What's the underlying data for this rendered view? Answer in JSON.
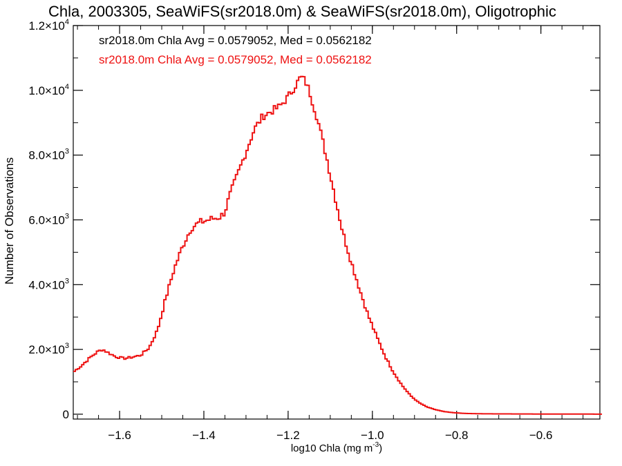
{
  "colors": {
    "series_red": "#ee1111",
    "axis": "#000000"
  },
  "chart_data": {
    "type": "line",
    "style": "step-histogram",
    "title": "Chla, 2003305, SeaWiFS(sr2018.0m) & SeaWiFS(sr2018.0m), Oligotrophic",
    "xlabel": "log10 Chla (mg m",
    "xlabel_sup": "-3",
    "xlabel_end": ")",
    "ylabel": "Number of Observations",
    "xlim": [
      -1.71,
      -0.46
    ],
    "ylim": [
      -150,
      12000
    ],
    "grid": false,
    "x_ticks": [
      -1.6,
      -1.4,
      -1.2,
      -1.0,
      -0.8,
      -0.6
    ],
    "x_tick_labels": [
      "−1.6",
      "−1.4",
      "−1.2",
      "−1.0",
      "−0.8",
      "−0.6"
    ],
    "y_ticks": [
      0,
      2000,
      4000,
      6000,
      8000,
      10000,
      12000
    ],
    "y_tick_labels": [
      {
        "mant": "0",
        "exp": ""
      },
      {
        "mant": "2.0×10",
        "exp": "3"
      },
      {
        "mant": "4.0×10",
        "exp": "3"
      },
      {
        "mant": "6.0×10",
        "exp": "3"
      },
      {
        "mant": "8.0×10",
        "exp": "3"
      },
      {
        "mant": "1.0×10",
        "exp": "4"
      },
      {
        "mant": "1.2×10",
        "exp": "4"
      }
    ],
    "annotations": [
      {
        "text": "sr2018.0m Chla Avg = 0.0579052, Med = 0.0562182",
        "color": "#000000"
      },
      {
        "text": "sr2018.0m Chla Avg = 0.0579052, Med = 0.0562182",
        "color": "#ee1111"
      }
    ],
    "series": [
      {
        "color": "#ee1111",
        "points": [
          [
            -1.71,
            1300
          ],
          [
            -1.69,
            1500
          ],
          [
            -1.67,
            1750
          ],
          [
            -1.65,
            1950
          ],
          [
            -1.64,
            2000
          ],
          [
            -1.63,
            1920
          ],
          [
            -1.61,
            1780
          ],
          [
            -1.59,
            1720
          ],
          [
            -1.57,
            1760
          ],
          [
            -1.55,
            1820
          ],
          [
            -1.53,
            2050
          ],
          [
            -1.51,
            2600
          ],
          [
            -1.49,
            3600
          ],
          [
            -1.47,
            4500
          ],
          [
            -1.45,
            5200
          ],
          [
            -1.43,
            5750
          ],
          [
            -1.41,
            5920
          ],
          [
            -1.4,
            5960
          ],
          [
            -1.38,
            6030
          ],
          [
            -1.36,
            6100
          ],
          [
            -1.35,
            6250
          ],
          [
            -1.34,
            6700
          ],
          [
            -1.32,
            7400
          ],
          [
            -1.3,
            8100
          ],
          [
            -1.28,
            8800
          ],
          [
            -1.26,
            9200
          ],
          [
            -1.24,
            9350
          ],
          [
            -1.22,
            9500
          ],
          [
            -1.2,
            9800
          ],
          [
            -1.18,
            10200
          ],
          [
            -1.17,
            10420
          ],
          [
            -1.16,
            10300
          ],
          [
            -1.15,
            10000
          ],
          [
            -1.13,
            9100
          ],
          [
            -1.11,
            8000
          ],
          [
            -1.09,
            6800
          ],
          [
            -1.07,
            5600
          ],
          [
            -1.05,
            4700
          ],
          [
            -1.03,
            3850
          ],
          [
            -1.01,
            3050
          ],
          [
            -0.99,
            2400
          ],
          [
            -0.97,
            1800
          ],
          [
            -0.95,
            1300
          ],
          [
            -0.93,
            900
          ],
          [
            -0.91,
            580
          ],
          [
            -0.89,
            360
          ],
          [
            -0.87,
            220
          ],
          [
            -0.85,
            140
          ],
          [
            -0.83,
            80
          ],
          [
            -0.81,
            50
          ],
          [
            -0.79,
            30
          ],
          [
            -0.77,
            20
          ],
          [
            -0.75,
            15
          ],
          [
            -0.7,
            10
          ],
          [
            -0.6,
            5
          ],
          [
            -0.46,
            3
          ]
        ]
      }
    ]
  }
}
